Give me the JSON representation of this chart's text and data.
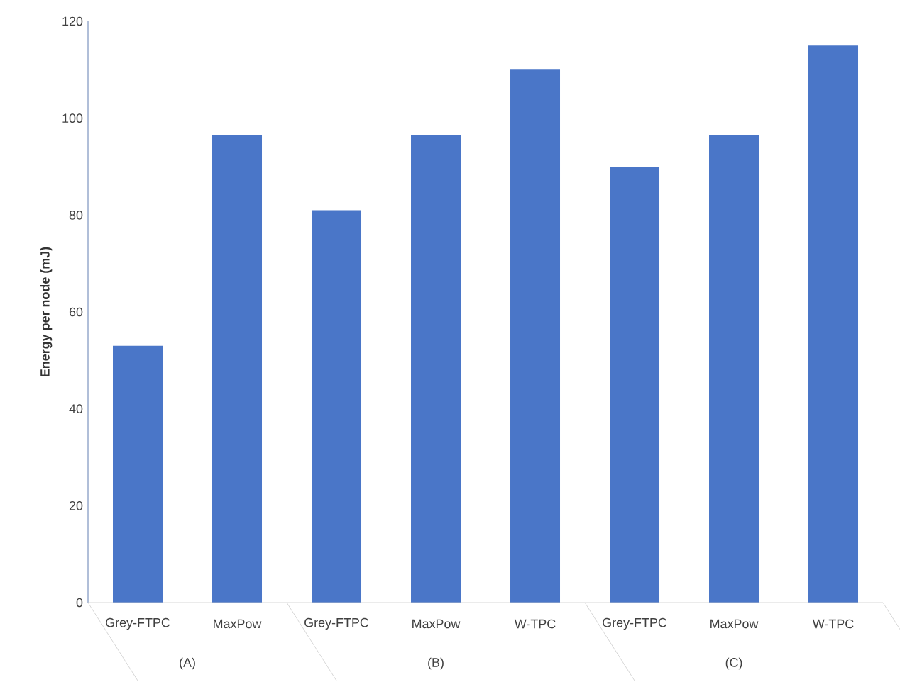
{
  "chart_data": {
    "type": "bar",
    "ylabel": "Energy per node (mJ)",
    "categories": [
      "Grey-FTPC",
      "MaxPow",
      "Grey-FTPC",
      "MaxPow",
      "W-TPC",
      "Grey-FTPC",
      "MaxPow",
      "W-TPC"
    ],
    "values": [
      53,
      96.5,
      81,
      96.5,
      110,
      90,
      96.5,
      115
    ],
    "color": "#4a76c8",
    "ylim": [
      0,
      120
    ],
    "yticks": [
      0,
      20,
      40,
      60,
      80,
      100,
      120
    ],
    "annotations": [
      "(A)",
      "(B)",
      "(C)"
    ]
  }
}
